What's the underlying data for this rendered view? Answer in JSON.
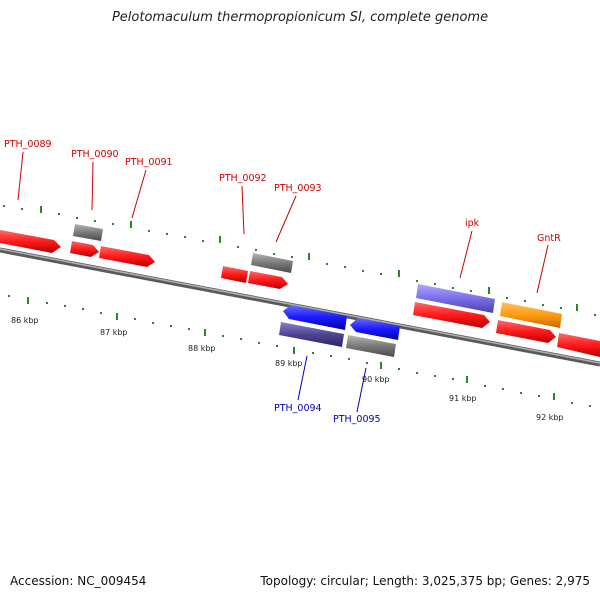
{
  "title": "Pelotomaculum thermopropionicum SI, complete genome",
  "footer": {
    "accession": "Accession: NC_009454",
    "summary": "Topology: circular; Length: 3,025,375 bp; Genes: 2,975"
  },
  "colors": {
    "forward_label": "#cc0000",
    "reverse_label": "#0000bb",
    "tick": "#228b22",
    "backbone": "#7f7f7f"
  },
  "kbp_labels": [
    "86 kbp",
    "87 kbp",
    "88 kbp",
    "89 kbp",
    "90 kbp",
    "91 kbp",
    "92 kbp"
  ],
  "gene_labels": {
    "forward": [
      "PTH_0089",
      "PTH_0090",
      "PTH_0091",
      "PTH_0092",
      "PTH_0093",
      "ipk",
      "GntR"
    ],
    "reverse": [
      "PTH_0094",
      "PTH_0095"
    ]
  }
}
